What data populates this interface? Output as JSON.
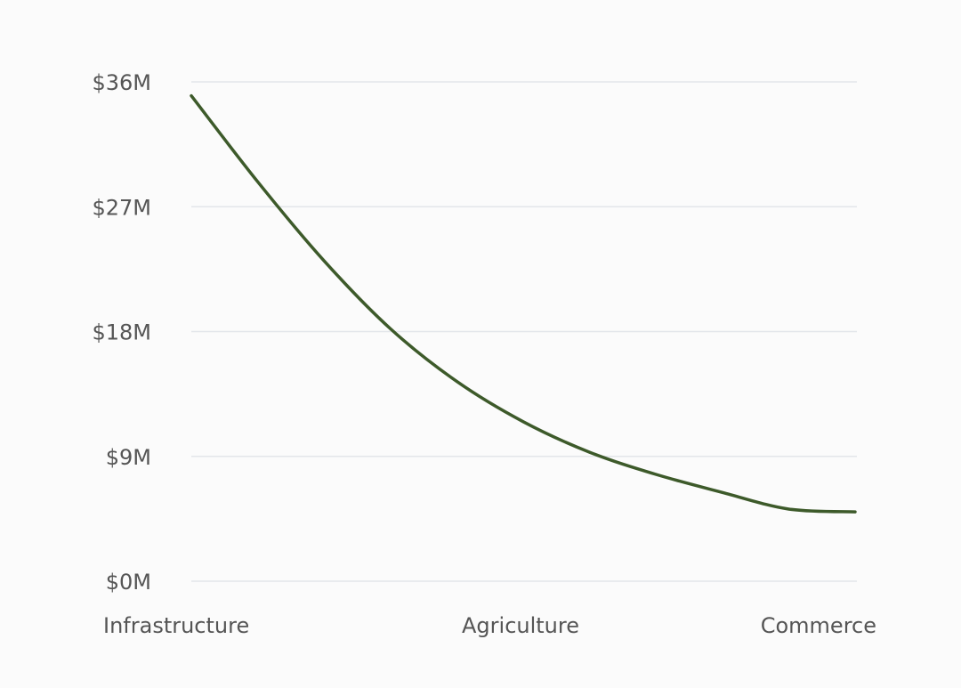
{
  "chart_data": {
    "type": "line",
    "title": "",
    "xlabel": "",
    "ylabel": "",
    "categories": [
      "Infrastructure",
      "Agriculture",
      "Commerce"
    ],
    "x_positions": [
      0,
      0.5,
      1
    ],
    "series": [
      {
        "color": "#3d5a2a",
        "points": [
          {
            "x": 0.0,
            "y": 35.0
          },
          {
            "x": 0.1,
            "y": 28.8
          },
          {
            "x": 0.2,
            "y": 23.1
          },
          {
            "x": 0.3,
            "y": 18.2
          },
          {
            "x": 0.4,
            "y": 14.4
          },
          {
            "x": 0.5,
            "y": 11.5
          },
          {
            "x": 0.6,
            "y": 9.3
          },
          {
            "x": 0.7,
            "y": 7.7
          },
          {
            "x": 0.8,
            "y": 6.4
          },
          {
            "x": 0.9,
            "y": 5.2
          },
          {
            "x": 1.0,
            "y": 5.0
          }
        ]
      }
    ],
    "y_ticks": [
      0,
      9,
      18,
      27,
      36
    ],
    "y_tick_labels": [
      "$0M",
      "$9M",
      "$18M",
      "$27M",
      "$36M"
    ],
    "ylim": [
      0,
      36
    ],
    "grid": true,
    "legend": "none"
  }
}
